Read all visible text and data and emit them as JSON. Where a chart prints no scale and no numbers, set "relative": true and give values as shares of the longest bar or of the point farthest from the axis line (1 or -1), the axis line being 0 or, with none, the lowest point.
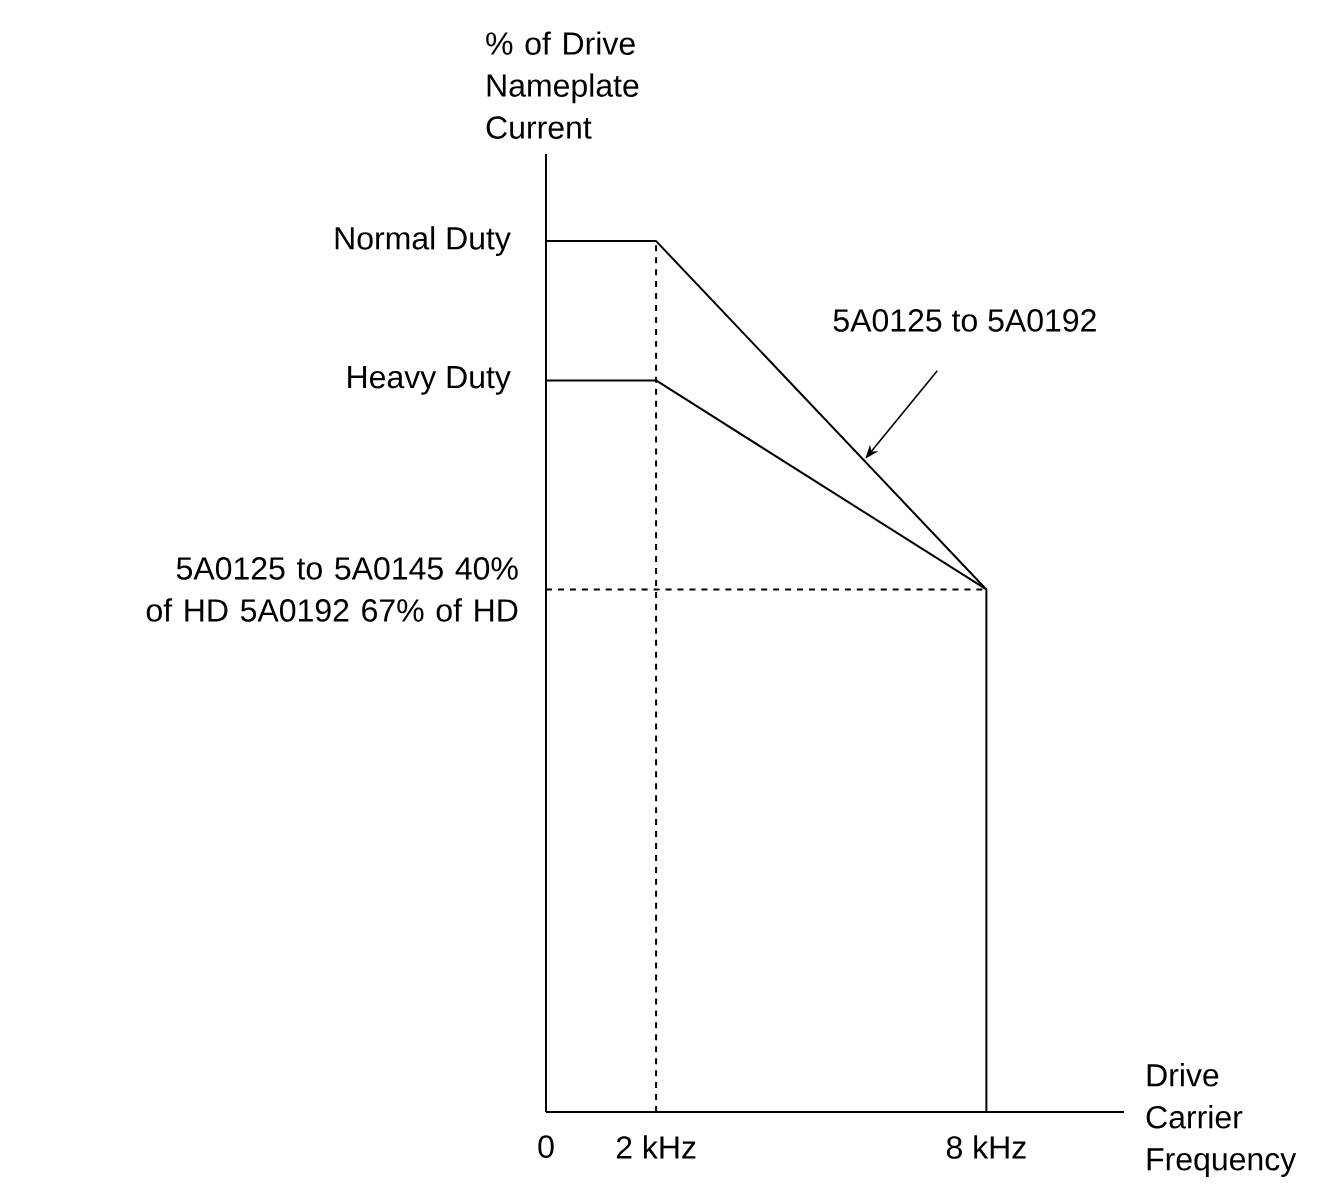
{
  "chart_data": {
    "type": "line",
    "relative": true,
    "xlabel": "Drive Carrier Frequency",
    "ylabel": "% of Drive Nameplate Current",
    "xlim": [
      0,
      10.5
    ],
    "xticks": [
      {
        "value": 0,
        "label": "0"
      },
      {
        "value": 2,
        "label": "2 kHz"
      },
      {
        "value": 8,
        "label": "8 kHz"
      }
    ],
    "series": [
      {
        "name": "Normal Duty",
        "color": "#000000",
        "x": [
          0,
          2,
          8,
          8
        ],
        "values": [
          1,
          1,
          0.6,
          0
        ]
      },
      {
        "name": "Heavy Duty",
        "color": "#000000",
        "x": [
          0,
          2,
          8
        ],
        "values": [
          0.84,
          0.84,
          0.6
        ]
      }
    ],
    "ref_lines": [
      {
        "axis": "x",
        "value": 2,
        "line_style": "dashed",
        "color": "#000000"
      },
      {
        "axis": "y",
        "value": 0.6,
        "label": "5A0125 to 5A0145 40% of HD 5A0192 67% of HD",
        "line_style": "dashed",
        "color": "#000000"
      }
    ],
    "annotations": [
      {
        "text": "5A0125 to 5A0192",
        "x": 5.8,
        "y": 0.75
      }
    ],
    "line_style": "solid",
    "marker": "none",
    "grid": false
  }
}
